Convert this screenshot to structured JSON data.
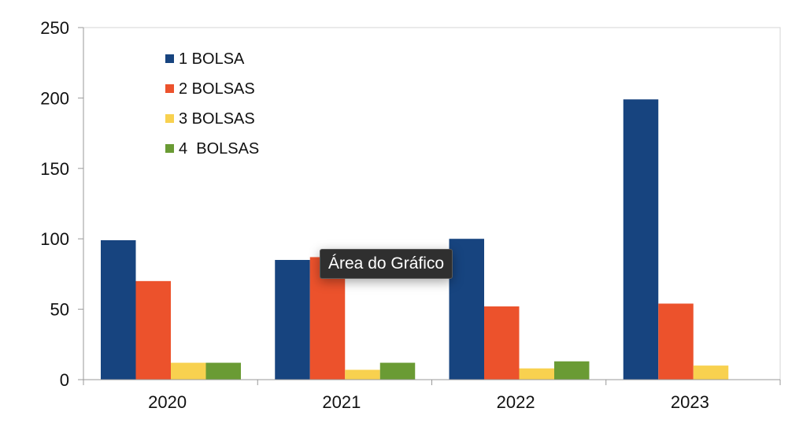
{
  "chart_data": {
    "type": "bar",
    "categories": [
      "2020",
      "2021",
      "2022",
      "2023"
    ],
    "series": [
      {
        "name": "1 BOLSA",
        "values": [
          99,
          85,
          100,
          199
        ],
        "color": "#17447f"
      },
      {
        "name": "2 BOLSAS",
        "values": [
          70,
          87,
          52,
          54
        ],
        "color": "#ec522c"
      },
      {
        "name": "3 BOLSAS",
        "values": [
          12,
          7,
          8,
          10
        ],
        "color": "#f8d14f"
      },
      {
        "name": "4  BOLSAS",
        "values": [
          12,
          12,
          13,
          null
        ],
        "color": "#6a9b34"
      }
    ],
    "ylim": [
      0,
      250
    ],
    "yticks": [
      "0",
      "50",
      "100",
      "150",
      "200",
      "250"
    ],
    "ytick_values": [
      0,
      50,
      100,
      150,
      200,
      250
    ],
    "title": "",
    "xlabel": "",
    "ylabel": "",
    "grid": false,
    "legend_position": "top-left"
  },
  "tooltip": {
    "text": "Área do Gráfico"
  }
}
